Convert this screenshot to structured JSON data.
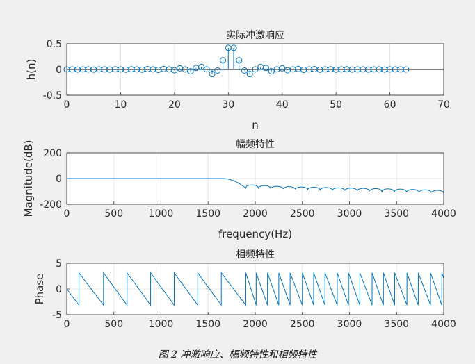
{
  "figure": {
    "caption": "图 2  冲激响应、幅频特性和相频特性"
  },
  "colors": {
    "line": "#0072bd",
    "grid": "#e3e3e3",
    "axes": "#262626",
    "background": "#f0f0f0",
    "plot_background": "#ffffff"
  },
  "chart_data": [
    {
      "type": "stem",
      "title": "实际冲激响应",
      "xlabel": "n",
      "ylabel": "h(n)",
      "xlim": [
        0,
        70
      ],
      "ylim": [
        -0.5,
        0.5
      ],
      "xticks": [
        0,
        10,
        20,
        30,
        40,
        50,
        60,
        70
      ],
      "yticks": [
        -0.5,
        0,
        0.5
      ],
      "xtick_labels": [
        "0",
        "10",
        "20",
        "30",
        "40",
        "50",
        "60",
        "70"
      ],
      "ytick_labels": [
        "-0.5",
        "0",
        "0.5"
      ],
      "grid": true,
      "series": [
        {
          "x": [
            0,
            1,
            2,
            3,
            4,
            5,
            6,
            7,
            8,
            9,
            10,
            11,
            12,
            13,
            14,
            15,
            16,
            17,
            18,
            19,
            20,
            21,
            22,
            23,
            24,
            25,
            26,
            27,
            28,
            29,
            30,
            31,
            32,
            33,
            34,
            35,
            36,
            37,
            38,
            39,
            40,
            41,
            42,
            43,
            44,
            45,
            46,
            47,
            48,
            49,
            50,
            51,
            52,
            53,
            54,
            55,
            56,
            57,
            58,
            59,
            60,
            61,
            62,
            63
          ],
          "y": [
            0.002,
            0.001,
            -0.001,
            0.002,
            0.001,
            -0.002,
            0.002,
            0.001,
            -0.002,
            0.003,
            0.001,
            -0.003,
            0.004,
            0.002,
            -0.004,
            0.006,
            0.002,
            -0.007,
            0.01,
            0.002,
            -0.015,
            0.022,
            0.002,
            -0.035,
            0.03,
            0.05,
            0.002,
            -0.09,
            -0.02,
            0.18,
            0.42,
            0.42,
            0.18,
            -0.02,
            -0.09,
            0.002,
            0.05,
            0.03,
            -0.035,
            0.002,
            0.022,
            -0.015,
            0.002,
            0.01,
            -0.007,
            0.002,
            0.006,
            -0.004,
            0.002,
            0.004,
            -0.003,
            0.001,
            0.003,
            -0.002,
            0.001,
            0.002,
            -0.002,
            0.001,
            0.002,
            -0.001,
            0.001,
            0.002,
            0.001,
            0.0
          ]
        }
      ]
    },
    {
      "type": "line",
      "title": "幅频特性",
      "xlabel": "frequency(Hz)",
      "ylabel": "Magnitude(dB)",
      "xlim": [
        0,
        4000
      ],
      "ylim": [
        -200,
        200
      ],
      "xticks": [
        0,
        500,
        1000,
        1500,
        2000,
        2500,
        3000,
        3500,
        4000
      ],
      "yticks": [
        -200,
        0,
        200
      ],
      "xtick_labels": [
        "0",
        "500",
        "1000",
        "1500",
        "2000",
        "2500",
        "3000",
        "3500",
        "4000"
      ],
      "ytick_labels": [
        "-200",
        "0",
        "200"
      ],
      "grid": true,
      "passband_edge_hz": 1650,
      "stopband_start_hz": 1900,
      "lobe_count": 16,
      "lobe_peak_db": [
        -50,
        -55,
        -60,
        -63,
        -66,
        -68,
        -70,
        -72,
        -74,
        -76,
        -78,
        -80,
        -82,
        -85,
        -88,
        -92
      ],
      "null_depth_db": [
        -75,
        -80,
        -85,
        -88,
        -90,
        -92,
        -95,
        -98,
        -100,
        -102,
        -105,
        -108,
        -110,
        -112,
        -115,
        -118
      ]
    },
    {
      "type": "line",
      "title": "相频特性",
      "xlabel": "",
      "ylabel": "Phase",
      "xlim": [
        0,
        4000
      ],
      "ylim": [
        -5,
        5
      ],
      "xticks": [
        0,
        500,
        1000,
        1500,
        2000,
        2500,
        3000,
        3500,
        4000
      ],
      "yticks": [
        -5,
        0,
        5
      ],
      "xtick_labels": [
        "0",
        "500",
        "1000",
        "1500",
        "2000",
        "2500",
        "3000",
        "3500",
        "4000"
      ],
      "ytick_labels": [
        "-5",
        "0",
        "5"
      ],
      "grid": true,
      "wrap_frequencies_hz": [
        130,
        390,
        640,
        890,
        1140,
        1390,
        1640,
        1900,
        2010,
        2130,
        2250,
        2370,
        2500,
        2620,
        2740,
        2870,
        2990,
        3110,
        3240,
        3360,
        3480,
        3610,
        3730,
        3860,
        3980
      ],
      "wrap_top": 3.14,
      "wrap_bottom": -3.14
    }
  ]
}
